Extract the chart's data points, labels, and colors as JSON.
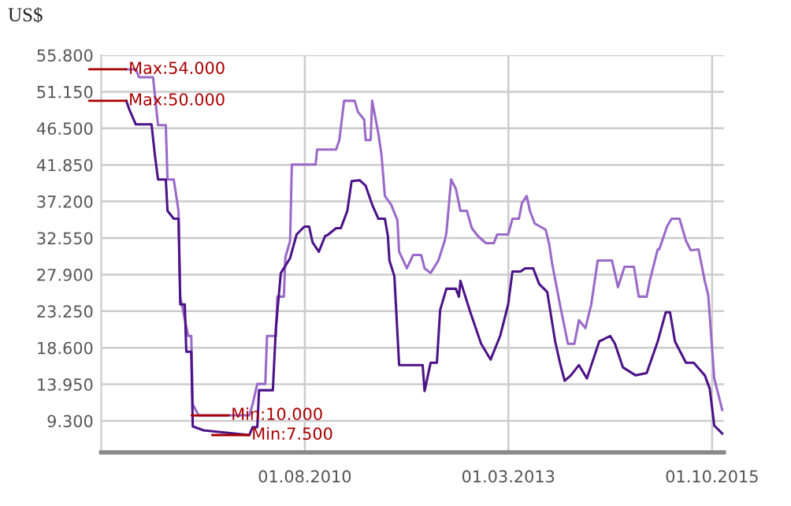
{
  "chart_data": {
    "type": "line",
    "ylabel": "US$",
    "xlim": [
      "2008-01-01",
      "2015-11-24"
    ],
    "xticks": [
      {
        "value": "2010-08-01",
        "label": "01.08.2010"
      },
      {
        "value": "2013-03-01",
        "label": "01.03.2013"
      },
      {
        "value": "2015-10-01",
        "label": "01.10.2015"
      }
    ],
    "ylim": [
      5.3,
      55.8
    ],
    "yticks": [
      {
        "value": 9.3,
        "label": "9.300"
      },
      {
        "value": 13.95,
        "label": "13.950"
      },
      {
        "value": 18.6,
        "label": "18.600"
      },
      {
        "value": 23.25,
        "label": "23.250"
      },
      {
        "value": 27.9,
        "label": "27.900"
      },
      {
        "value": 32.55,
        "label": "32.550"
      },
      {
        "value": 37.2,
        "label": "37.200"
      },
      {
        "value": 41.85,
        "label": "41.850"
      },
      {
        "value": 46.5,
        "label": "46.500"
      },
      {
        "value": 51.15,
        "label": "51.150"
      },
      {
        "value": 55.8,
        "label": "55.800"
      }
    ],
    "grid": true,
    "legend": false,
    "marker": "none",
    "line_style": "solid",
    "series": [
      {
        "color": "#9a6ac8",
        "x": [
          "2008-04-26",
          "2008-06-09",
          "2008-06-24",
          "2008-08-28",
          "2008-09-20",
          "2008-10-26",
          "2008-11-03",
          "2008-12-02",
          "2008-12-24",
          "2009-01-01",
          "2009-02-07",
          "2009-02-21",
          "2009-02-28",
          "2009-03-27",
          "2009-11-17",
          "2009-12-02",
          "2009-12-24",
          "2010-01-30",
          "2010-02-07",
          "2010-03-20",
          "2010-03-27",
          "2010-04-26",
          "2010-05-03",
          "2010-05-25",
          "2010-06-02",
          "2010-09-20",
          "2010-09-27",
          "2010-12-24",
          "2011-01-08",
          "2011-01-30",
          "2011-03-20",
          "2011-04-04",
          "2011-05-03",
          "2011-05-10",
          "2011-06-02",
          "2011-06-09",
          "2011-07-08",
          "2011-07-22",
          "2011-08-07",
          "2011-09-05",
          "2011-10-04",
          "2011-10-12",
          "2011-11-17",
          "2011-12-16",
          "2012-01-22",
          "2012-02-07",
          "2012-03-06",
          "2012-04-11",
          "2012-05-10",
          "2012-05-18",
          "2012-06-09",
          "2012-07-01",
          "2012-07-22",
          "2012-08-21",
          "2012-09-13",
          "2012-10-11",
          "2012-11-17",
          "2012-12-24",
          "2013-01-08",
          "2013-02-28",
          "2013-03-20",
          "2013-04-19",
          "2013-05-03",
          "2013-05-25",
          "2013-06-09",
          "2013-07-01",
          "2013-08-21",
          "2013-09-06",
          "2013-09-20",
          "2013-10-26",
          "2013-12-02",
          "2014-01-01",
          "2014-01-22",
          "2014-02-21",
          "2014-03-20",
          "2014-04-19",
          "2014-06-24",
          "2014-07-22",
          "2014-08-21",
          "2014-10-04",
          "2014-10-26",
          "2014-12-02",
          "2014-12-16",
          "2015-01-22",
          "2015-01-29",
          "2015-03-06",
          "2015-03-27",
          "2015-05-03",
          "2015-06-02",
          "2015-06-24",
          "2015-07-30",
          "2015-08-28",
          "2015-09-13",
          "2015-10-11",
          "2015-11-17"
        ],
        "values": [
          54,
          54,
          53,
          53,
          46.9,
          46.9,
          40,
          40,
          36,
          25.1,
          20.1,
          20.1,
          11.4,
          10,
          10,
          11.4,
          14,
          14,
          20.1,
          20.1,
          25.1,
          25.1,
          30.1,
          32.2,
          41.9,
          41.9,
          43.8,
          43.8,
          45,
          50,
          50,
          48.6,
          47.6,
          45,
          45,
          50,
          45.8,
          43.2,
          37.9,
          36.8,
          34.8,
          30.8,
          28.7,
          30.4,
          30.4,
          28.7,
          28.1,
          29.7,
          32.2,
          33.2,
          40,
          38.8,
          36,
          36,
          33.8,
          32.8,
          31.9,
          31.9,
          33,
          33,
          35,
          35,
          37,
          37.9,
          36,
          34.4,
          33.6,
          31.8,
          29.3,
          24.1,
          19.1,
          19.1,
          22.1,
          21.1,
          24.1,
          29.7,
          29.7,
          26.3,
          28.9,
          28.9,
          25.1,
          25.1,
          27.1,
          31.1,
          31.1,
          34,
          35,
          35,
          32.2,
          31,
          31.1,
          27.1,
          25.3,
          14.7,
          10.7
        ]
      },
      {
        "color": "#4b1387",
        "x": [
          "2008-04-26",
          "2008-05-10",
          "2008-06-09",
          "2008-08-21",
          "2008-09-06",
          "2008-09-20",
          "2008-10-26",
          "2008-11-03",
          "2008-12-02",
          "2008-12-24",
          "2009-01-01",
          "2009-01-22",
          "2009-01-29",
          "2009-02-21",
          "2009-02-28",
          "2009-04-19",
          "2009-11-17",
          "2009-12-02",
          "2009-12-24",
          "2010-01-01",
          "2010-03-06",
          "2010-03-20",
          "2010-04-12",
          "2010-05-25",
          "2010-06-16",
          "2010-06-24",
          "2010-07-30",
          "2010-08-21",
          "2010-09-06",
          "2010-10-05",
          "2010-11-03",
          "2010-11-18",
          "2010-12-24",
          "2011-01-15",
          "2011-02-14",
          "2011-03-06",
          "2011-04-12",
          "2011-05-10",
          "2011-06-09",
          "2011-07-08",
          "2011-08-07",
          "2011-08-21",
          "2011-08-28",
          "2011-09-20",
          "2011-10-12",
          "2012-01-29",
          "2012-02-07",
          "2012-03-06",
          "2012-04-04",
          "2012-04-19",
          "2012-05-18",
          "2012-07-01",
          "2012-07-15",
          "2012-07-22",
          "2012-09-06",
          "2012-10-26",
          "2012-12-09",
          "2013-01-22",
          "2013-02-28",
          "2013-03-20",
          "2013-04-26",
          "2013-05-18",
          "2013-06-24",
          "2013-07-22",
          "2013-08-28",
          "2013-10-04",
          "2013-10-26",
          "2013-11-17",
          "2013-12-16",
          "2014-01-22",
          "2014-02-28",
          "2014-04-26",
          "2014-06-16",
          "2014-07-08",
          "2014-08-14",
          "2014-10-11",
          "2014-12-02",
          "2015-01-22",
          "2015-02-28",
          "2015-03-20",
          "2015-04-12",
          "2015-06-02",
          "2015-07-08",
          "2015-08-28",
          "2015-09-20",
          "2015-10-11",
          "2015-11-17"
        ],
        "values": [
          50,
          48.9,
          47,
          47,
          43,
          40,
          40,
          36,
          35,
          35,
          24.1,
          24.1,
          18.1,
          18.1,
          8.6,
          8.1,
          7.5,
          8.5,
          8.5,
          13.2,
          13.2,
          21.1,
          28.1,
          30,
          32.2,
          33,
          34,
          34,
          32,
          30.8,
          32.8,
          33,
          33.8,
          33.8,
          36,
          39.8,
          39.9,
          39.2,
          36.8,
          35,
          35,
          32.8,
          29.7,
          27.7,
          16.4,
          16.4,
          13.1,
          16.7,
          16.7,
          23.4,
          26.1,
          26.1,
          25.1,
          27.1,
          23.1,
          19.1,
          17.1,
          20.1,
          24.1,
          28.3,
          28.3,
          28.7,
          28.7,
          26.7,
          25.7,
          19.4,
          16.7,
          14.4,
          15.1,
          16.4,
          14.7,
          19.4,
          20.1,
          19.1,
          16.1,
          15.1,
          15.4,
          19.4,
          23.1,
          23.1,
          19.4,
          16.7,
          16.7,
          15.1,
          13.4,
          8.7,
          7.7
        ]
      }
    ],
    "annotations": [
      {
        "text": "Max:54.000",
        "x": "2008-04-26",
        "y": 54
      },
      {
        "text": "Max:50.000",
        "x": "2008-04-26",
        "y": 50
      },
      {
        "text": "Min:10.000",
        "x": "2009-08-14",
        "y": 10
      },
      {
        "text": "Min:7.500",
        "x": "2009-11-17",
        "y": 7.5
      }
    ]
  }
}
